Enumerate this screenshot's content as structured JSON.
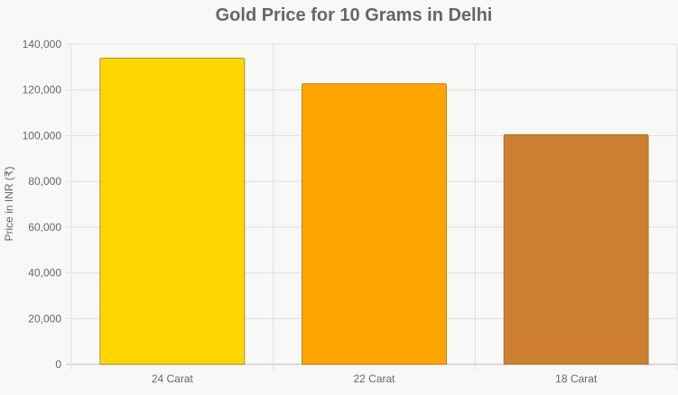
{
  "chart_data": {
    "type": "bar",
    "title": "Gold Price for 10 Grams in Delhi",
    "xlabel": "",
    "ylabel": "Price in INR (₹)",
    "categories": [
      "24 Carat",
      "22 Carat",
      "18 Carat"
    ],
    "values": [
      133900,
      122750,
      100450
    ],
    "colors": [
      "#ffd700",
      "#ffa500",
      "#cd7f32"
    ],
    "ylim": [
      0,
      140000
    ],
    "yticks": [
      "0",
      "20,000",
      "40,000",
      "60,000",
      "80,000",
      "100,000",
      "120,000",
      "140,000"
    ],
    "grid": true,
    "legend": "none"
  }
}
